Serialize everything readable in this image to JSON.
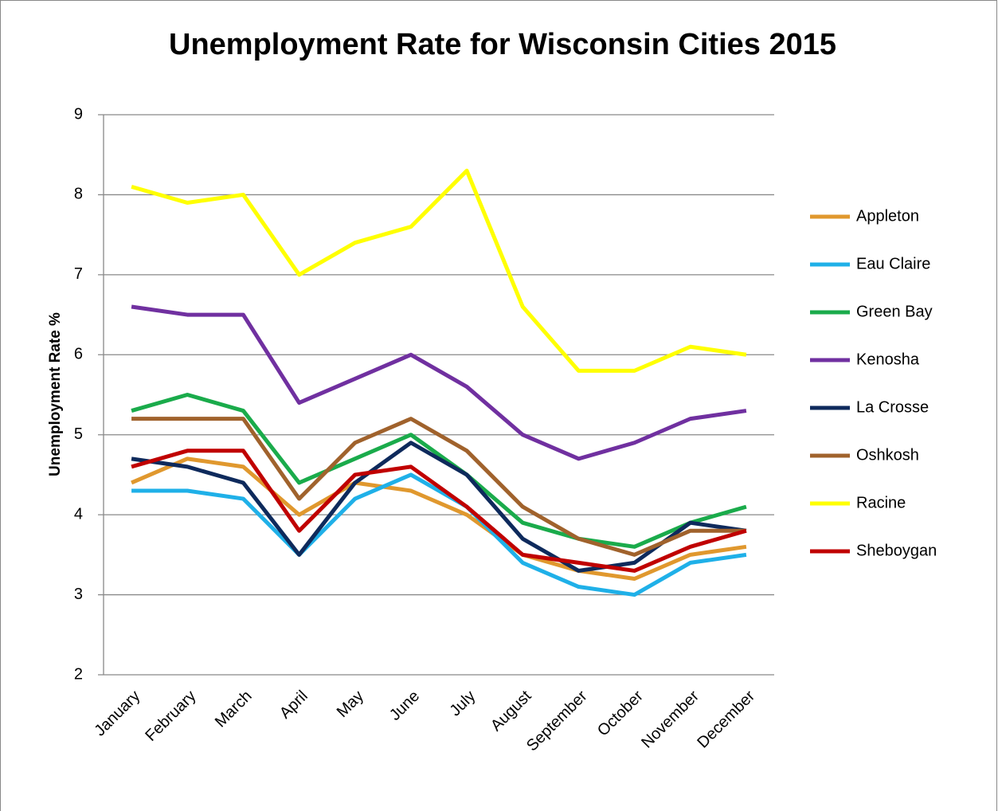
{
  "chart_data": {
    "type": "line",
    "title": "Unemployment Rate for Wisconsin Cities 2015",
    "y_label": "Unemployment Rate %",
    "categories": [
      "January",
      "February",
      "March",
      "April",
      "May",
      "June",
      "July",
      "August",
      "September",
      "October",
      "November",
      "December"
    ],
    "series": [
      {
        "name": "Appleton",
        "color": "#e0982e",
        "values": [
          4.4,
          4.7,
          4.6,
          4.0,
          4.4,
          4.3,
          4.0,
          3.5,
          3.3,
          3.2,
          3.5,
          3.6
        ]
      },
      {
        "name": "Eau Claire",
        "color": "#1fb0e8",
        "values": [
          4.3,
          4.3,
          4.2,
          3.5,
          4.2,
          4.5,
          4.1,
          3.4,
          3.1,
          3.0,
          3.4,
          3.5
        ]
      },
      {
        "name": "Green Bay",
        "color": "#1aab4b",
        "values": [
          5.3,
          5.5,
          5.3,
          4.4,
          4.7,
          5.0,
          4.5,
          3.9,
          3.7,
          3.6,
          3.9,
          4.1
        ]
      },
      {
        "name": "Kenosha",
        "color": "#7030a0",
        "values": [
          6.6,
          6.5,
          6.5,
          5.4,
          5.7,
          6.0,
          5.6,
          5.0,
          4.7,
          4.9,
          5.2,
          5.3
        ]
      },
      {
        "name": "La Crosse",
        "color": "#0e2a5c",
        "values": [
          4.7,
          4.6,
          4.4,
          3.5,
          4.4,
          4.9,
          4.5,
          3.7,
          3.3,
          3.4,
          3.9,
          3.8
        ]
      },
      {
        "name": "Oshkosh",
        "color": "#a0622c",
        "values": [
          5.2,
          5.2,
          5.2,
          4.2,
          4.9,
          5.2,
          4.8,
          4.1,
          3.7,
          3.5,
          3.8,
          3.8
        ]
      },
      {
        "name": "Racine",
        "color": "#ffff00",
        "values": [
          8.1,
          7.9,
          8.0,
          7.0,
          7.4,
          7.6,
          8.3,
          6.6,
          5.8,
          5.8,
          6.1,
          6.0
        ]
      },
      {
        "name": "Sheboygan",
        "color": "#c00000",
        "values": [
          4.6,
          4.8,
          4.8,
          3.8,
          4.5,
          4.6,
          4.1,
          3.5,
          3.4,
          3.3,
          3.6,
          3.8
        ]
      }
    ],
    "ylim": [
      2,
      9
    ],
    "yticks": [
      2,
      3,
      4,
      5,
      6,
      7,
      8,
      9
    ],
    "grid": true,
    "legend": "right"
  }
}
